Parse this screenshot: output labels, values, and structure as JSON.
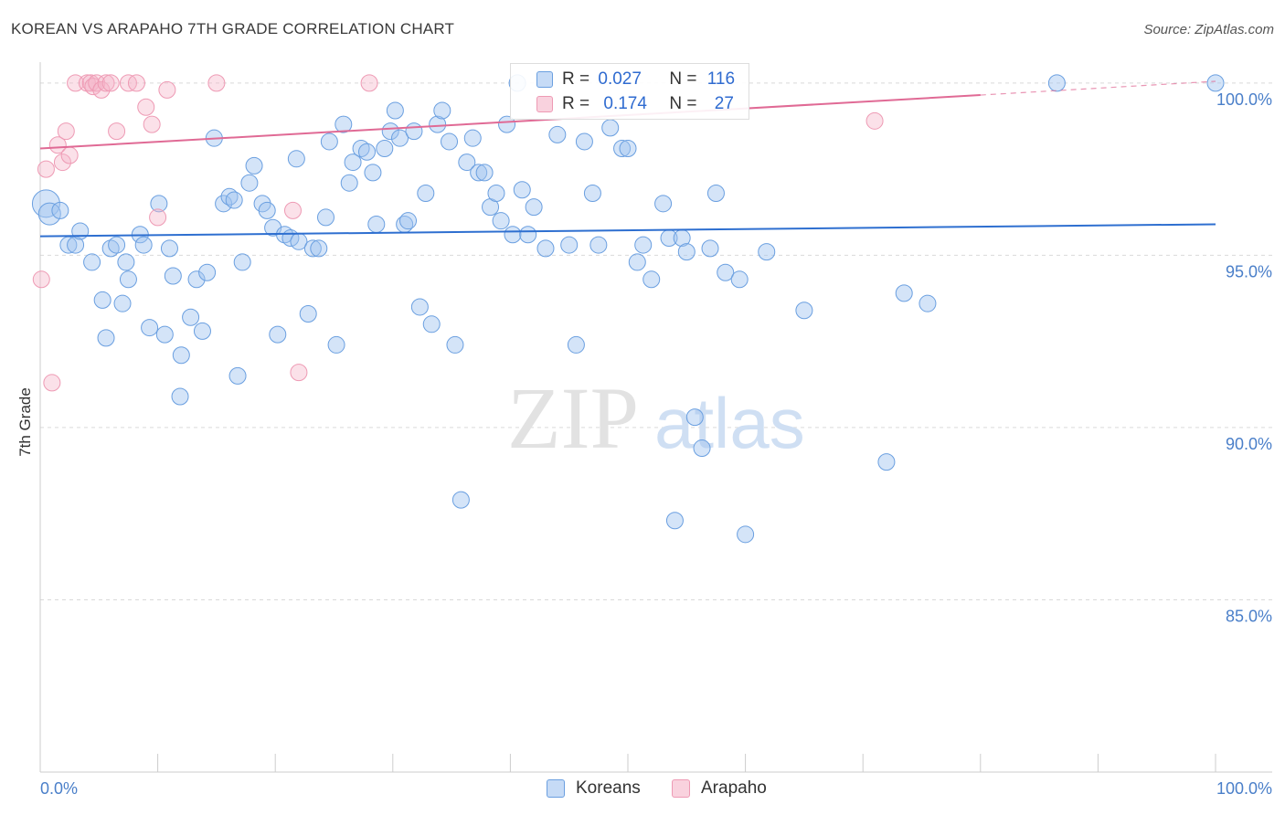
{
  "header": {
    "title": "KOREAN VS ARAPAHO 7TH GRADE CORRELATION CHART",
    "source": "Source: ZipAtlas.com"
  },
  "watermark": {
    "zip": "ZIP",
    "atlas": "atlas"
  },
  "colors": {
    "koreans_fill": "rgba(160,195,240,0.45)",
    "koreans_stroke": "#6a9fe0",
    "koreans_line": "#2e6fd0",
    "arapaho_fill": "rgba(245,180,200,0.4)",
    "arapaho_stroke": "#ee9ab4",
    "arapaho_line": "#e06a95",
    "tick_text": "#4a7fc9"
  },
  "legend": {
    "koreans": {
      "r_label": "R = ",
      "r_value": "0.027",
      "n_label": "N = ",
      "n_value": "116"
    },
    "arapaho": {
      "r_label": "R = ",
      "r_value": "0.174",
      "n_label": "N = ",
      "n_value": "27"
    }
  },
  "bottom_legend": {
    "koreans": "Koreans",
    "arapaho": "Arapaho"
  },
  "chart_data": {
    "type": "scatter",
    "title": "KOREAN VS ARAPAHO 7TH GRADE CORRELATION CHART",
    "xlabel": "",
    "ylabel": "7th Grade",
    "xlim": [
      0,
      100
    ],
    "ylim": [
      80.0,
      100.5
    ],
    "x_tick_labels": [
      {
        "value": 0,
        "label": "0.0%"
      },
      {
        "value": 100,
        "label": "100.0%"
      }
    ],
    "y_tick_labels": [
      {
        "value": 100,
        "label": "100.0%"
      },
      {
        "value": 95,
        "label": "95.0%"
      },
      {
        "value": 90,
        "label": "90.0%"
      },
      {
        "value": 85,
        "label": "85.0%"
      }
    ],
    "series": [
      {
        "name": "Koreans",
        "R": 0.027,
        "N": 116,
        "trend": {
          "x": [
            0,
            100
          ],
          "y": [
            95.55,
            95.9
          ]
        },
        "points": [
          [
            0.5,
            96.5
          ],
          [
            0.8,
            96.2
          ],
          [
            1.7,
            96.3
          ],
          [
            2.4,
            95.3
          ],
          [
            3.0,
            95.3
          ],
          [
            3.4,
            95.7
          ],
          [
            4.4,
            94.8
          ],
          [
            5.3,
            93.7
          ],
          [
            5.6,
            92.6
          ],
          [
            6.0,
            95.2
          ],
          [
            6.5,
            95.3
          ],
          [
            7.0,
            93.6
          ],
          [
            7.3,
            94.8
          ],
          [
            7.5,
            94.3
          ],
          [
            8.5,
            95.6
          ],
          [
            8.8,
            95.3
          ],
          [
            9.3,
            92.9
          ],
          [
            10.1,
            96.5
          ],
          [
            10.6,
            92.7
          ],
          [
            11.0,
            95.2
          ],
          [
            11.3,
            94.4
          ],
          [
            11.9,
            90.9
          ],
          [
            12.0,
            92.1
          ],
          [
            12.8,
            93.2
          ],
          [
            13.3,
            94.3
          ],
          [
            13.8,
            92.8
          ],
          [
            14.2,
            94.5
          ],
          [
            14.8,
            98.4
          ],
          [
            15.6,
            96.5
          ],
          [
            16.1,
            96.7
          ],
          [
            16.5,
            96.6
          ],
          [
            16.8,
            91.5
          ],
          [
            17.2,
            94.8
          ],
          [
            17.8,
            97.1
          ],
          [
            18.2,
            97.6
          ],
          [
            18.9,
            96.5
          ],
          [
            19.3,
            96.3
          ],
          [
            19.8,
            95.8
          ],
          [
            20.2,
            92.7
          ],
          [
            20.8,
            95.6
          ],
          [
            21.3,
            95.5
          ],
          [
            21.8,
            97.8
          ],
          [
            22.0,
            95.4
          ],
          [
            22.8,
            93.3
          ],
          [
            23.2,
            95.2
          ],
          [
            23.7,
            95.2
          ],
          [
            24.3,
            96.1
          ],
          [
            24.6,
            98.3
          ],
          [
            25.2,
            92.4
          ],
          [
            25.8,
            98.8
          ],
          [
            26.3,
            97.1
          ],
          [
            26.6,
            97.7
          ],
          [
            27.3,
            98.1
          ],
          [
            27.8,
            98.0
          ],
          [
            28.3,
            97.4
          ],
          [
            28.6,
            95.9
          ],
          [
            29.3,
            98.1
          ],
          [
            29.8,
            98.6
          ],
          [
            30.2,
            99.2
          ],
          [
            30.6,
            98.4
          ],
          [
            31.0,
            95.9
          ],
          [
            31.3,
            96.0
          ],
          [
            31.8,
            98.6
          ],
          [
            32.3,
            93.5
          ],
          [
            32.8,
            96.8
          ],
          [
            33.3,
            93.0
          ],
          [
            33.8,
            98.8
          ],
          [
            34.2,
            99.2
          ],
          [
            34.8,
            98.3
          ],
          [
            35.3,
            92.4
          ],
          [
            35.8,
            87.9
          ],
          [
            36.3,
            97.7
          ],
          [
            36.8,
            98.4
          ],
          [
            37.3,
            97.4
          ],
          [
            37.8,
            97.4
          ],
          [
            38.3,
            96.4
          ],
          [
            38.8,
            96.8
          ],
          [
            39.2,
            96.0
          ],
          [
            39.7,
            98.8
          ],
          [
            40.2,
            95.6
          ],
          [
            40.6,
            100.0
          ],
          [
            41.0,
            96.9
          ],
          [
            41.5,
            95.6
          ],
          [
            42.0,
            96.4
          ],
          [
            43.0,
            95.2
          ],
          [
            44.0,
            98.5
          ],
          [
            45.0,
            95.3
          ],
          [
            45.6,
            92.4
          ],
          [
            46.3,
            98.3
          ],
          [
            47.0,
            96.8
          ],
          [
            47.5,
            95.3
          ],
          [
            48.5,
            98.7
          ],
          [
            49.5,
            98.1
          ],
          [
            50.0,
            98.1
          ],
          [
            50.8,
            94.8
          ],
          [
            51.3,
            95.3
          ],
          [
            52.0,
            94.3
          ],
          [
            53.0,
            96.5
          ],
          [
            53.5,
            95.5
          ],
          [
            54.0,
            87.3
          ],
          [
            54.6,
            95.5
          ],
          [
            55.0,
            95.1
          ],
          [
            55.7,
            90.3
          ],
          [
            56.3,
            89.4
          ],
          [
            57.0,
            95.2
          ],
          [
            57.5,
            96.8
          ],
          [
            58.3,
            94.5
          ],
          [
            59.5,
            94.3
          ],
          [
            60.0,
            86.9
          ],
          [
            61.8,
            95.1
          ],
          [
            65.0,
            93.4
          ],
          [
            72.0,
            89.0
          ],
          [
            73.5,
            93.9
          ],
          [
            75.5,
            93.6
          ],
          [
            86.5,
            100.0
          ],
          [
            100.0,
            100.0
          ]
        ]
      },
      {
        "name": "Arapaho",
        "R": 0.174,
        "N": 27,
        "trend": {
          "x": [
            0,
            80
          ],
          "y": [
            98.1,
            99.65
          ]
        },
        "trend_dashed": {
          "x": [
            80,
            100
          ],
          "y": [
            99.65,
            100.05
          ]
        },
        "points": [
          [
            0.1,
            94.3
          ],
          [
            0.5,
            97.5
          ],
          [
            1.0,
            91.3
          ],
          [
            1.5,
            98.2
          ],
          [
            1.9,
            97.7
          ],
          [
            2.2,
            98.6
          ],
          [
            2.5,
            97.9
          ],
          [
            3.0,
            100.0
          ],
          [
            4.0,
            100.0
          ],
          [
            4.3,
            100.0
          ],
          [
            4.5,
            99.9
          ],
          [
            4.8,
            100.0
          ],
          [
            5.2,
            99.8
          ],
          [
            5.6,
            100.0
          ],
          [
            6.0,
            100.0
          ],
          [
            6.5,
            98.6
          ],
          [
            7.5,
            100.0
          ],
          [
            8.2,
            100.0
          ],
          [
            9.0,
            99.3
          ],
          [
            9.5,
            98.8
          ],
          [
            10.0,
            96.1
          ],
          [
            10.8,
            99.8
          ],
          [
            15.0,
            100.0
          ],
          [
            21.5,
            96.3
          ],
          [
            22.0,
            91.6
          ],
          [
            28.0,
            100.0
          ],
          [
            71.0,
            98.9
          ]
        ]
      }
    ]
  }
}
